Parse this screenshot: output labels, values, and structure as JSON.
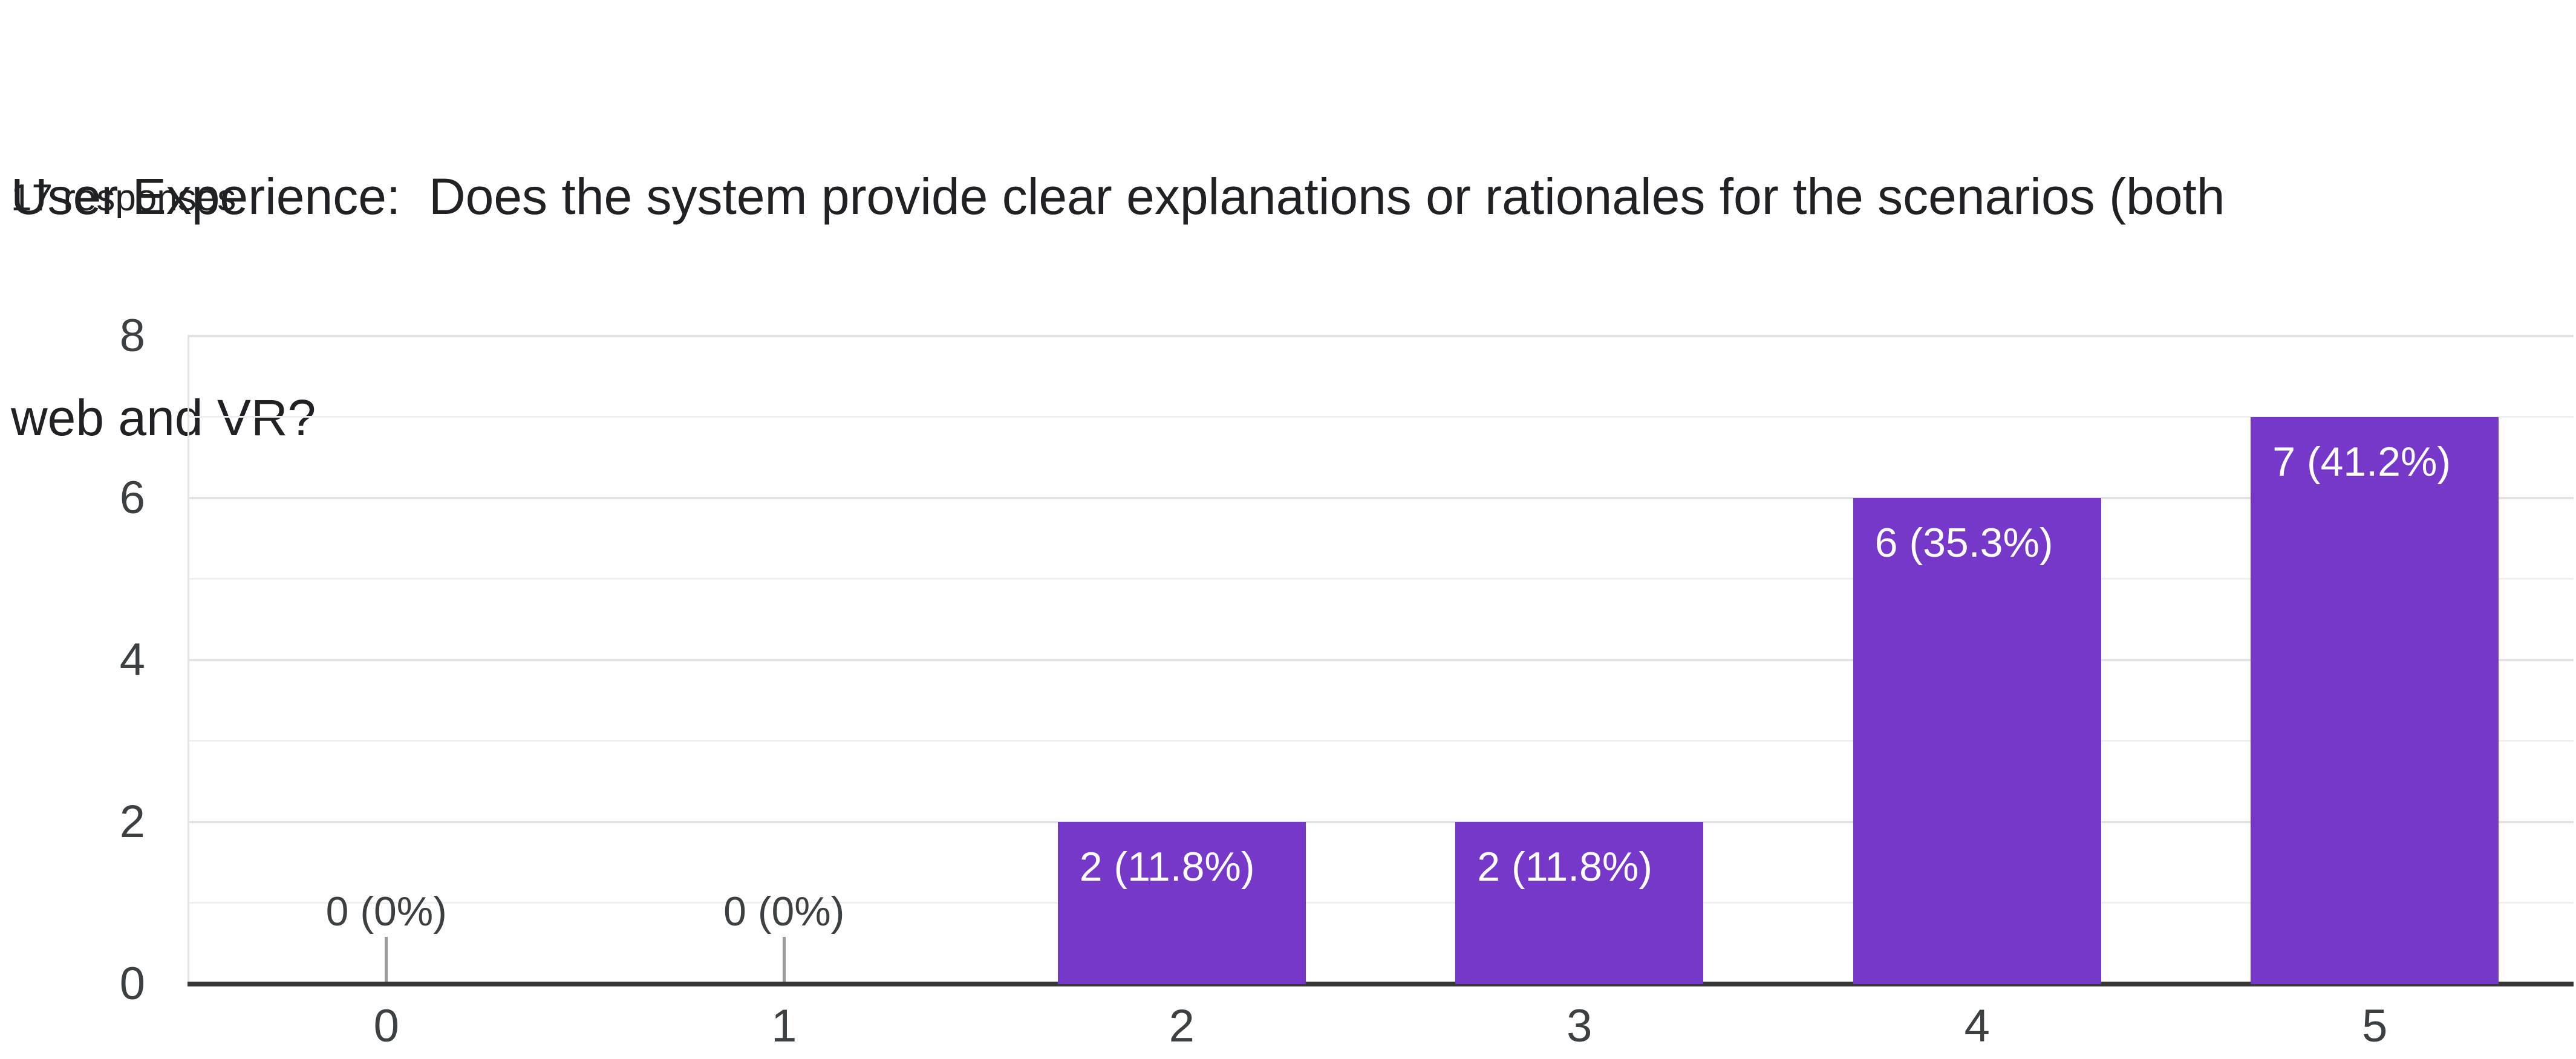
{
  "header": {
    "title": "User Experience:  Does the system provide clear explanations or rationales for the scenarios (both web and VR?",
    "title_lines": [
      "User Experience:  Does the system provide clear explanations or rationales for the scenarios (both",
      "web and VR?"
    ],
    "responses_label": "17 responses"
  },
  "chart_data": {
    "type": "bar",
    "title": "User Experience:  Does the system provide clear explanations or rationales for the scenarios (both web and VR?",
    "subtitle": "17 responses",
    "categories": [
      "0",
      "1",
      "2",
      "3",
      "4",
      "5"
    ],
    "values": [
      0,
      0,
      2,
      2,
      6,
      7
    ],
    "value_labels": [
      "0 (0%)",
      "0 (0%)",
      "2 (11.8%)",
      "2 (11.8%)",
      "6 (35.3%)",
      "7 (41.2%)"
    ],
    "percentages": [
      0,
      0,
      11.8,
      11.8,
      35.3,
      41.2
    ],
    "total_responses": 17,
    "xlabel": "",
    "ylabel": "",
    "y_ticks": [
      0,
      2,
      4,
      6,
      8
    ],
    "ylim": [
      0,
      8
    ],
    "grid": true,
    "legend": "none",
    "colors": {
      "bar": "#7638c9",
      "bar_label": "#ffffff",
      "zero_label": "#3c4043",
      "axis_text": "#3c4043",
      "title_text": "#202124",
      "gridline_major": "#e3e3e3",
      "gridline_minor": "#efefef",
      "baseline": "#373737",
      "zero_stem": "#9a9a9a",
      "background": "#ffffff"
    }
  }
}
